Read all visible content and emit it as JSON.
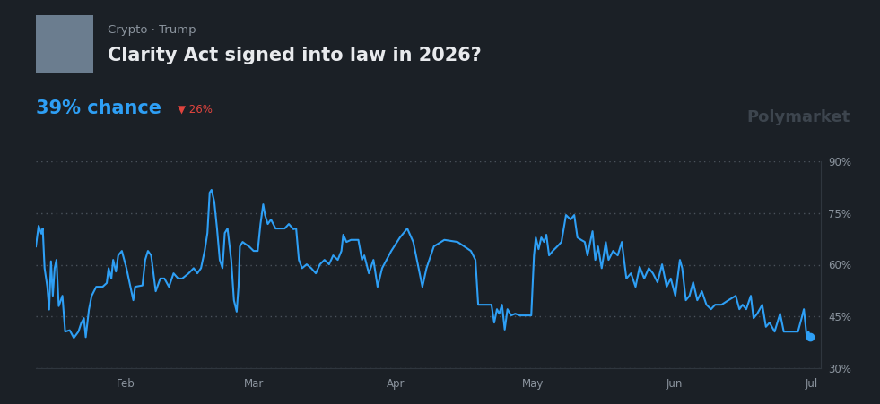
{
  "chart_data": {
    "type": "line",
    "title": "Clarity Act signed into law in 2026?",
    "subtitle": "Crypto · Trump",
    "annotations": [
      "39% chance",
      "▼ 26%",
      "Polymarket"
    ],
    "color": "#2e9ff5",
    "grid": true,
    "x": [
      12.4,
      13.0,
      13.6,
      13.9,
      14.3,
      14.9,
      15.3,
      15.7,
      16.1,
      16.5,
      16.9,
      17.4,
      18.2,
      18.8,
      19.8,
      20.7,
      21.7,
      22.3,
      22.9,
      23.3,
      24.0,
      24.6,
      25.6,
      27.0,
      27.9,
      28.3,
      28.9,
      29.3,
      29.9,
      30.4,
      31.2,
      32.2,
      33.7,
      34.1,
      35.7,
      36.3,
      36.9,
      37.6,
      38.6,
      39.6,
      40.5,
      41.5,
      42.5,
      43.5,
      44.4,
      45.8,
      46.9,
      47.7,
      48.5,
      49.3,
      49.9,
      50.4,
      50.8,
      51.4,
      52.0,
      52.6,
      53.2,
      53.7,
      54.3,
      55.1,
      55.7,
      56.3,
      56.7,
      57.0,
      57.6,
      58.2,
      59.0,
      60.0,
      60.9,
      61.5,
      62.1,
      62.5,
      63.1,
      63.8,
      64.8,
      66.8,
      67.7,
      68.7,
      69.3,
      69.9,
      70.6,
      71.6,
      72.6,
      73.6,
      74.5,
      75.5,
      76.5,
      77.4,
      78.4,
      79.2,
      79.6,
      80.3,
      81.3,
      82.9,
      83.7,
      84.2,
      85.2,
      86.2,
      87.1,
      88.1,
      90.1,
      92.0,
      93.6,
      94.9,
      95.9,
      96.9,
      97.8,
      99.4,
      101.7,
      104.6,
      107.5,
      108.5,
      109.1,
      111.4,
      112.0,
      112.6,
      113.2,
      113.7,
      114.3,
      114.9,
      115.5,
      116.3,
      117.2,
      118.2,
      119.2,
      120.7,
      121.3,
      121.7,
      122.3,
      122.9,
      123.5,
      124.0,
      124.6,
      125.4,
      126.4,
      127.3,
      128.3,
      129.3,
      130.1,
      130.8,
      131.6,
      132.4,
      133.0,
      133.6,
      134.1,
      134.7,
      135.3,
      136.1,
      137.0,
      137.6,
      138.6,
      139.6,
      140.5,
      141.5,
      142.5,
      143.5,
      144.4,
      145.4,
      146.4,
      147.3,
      148.3,
      149.3,
      150.3,
      151.2,
      152.2,
      153.2,
      153.7,
      154.5,
      155.3,
      156.1,
      157.0,
      158.0,
      159.0,
      160.0,
      160.9,
      162.3,
      163.8,
      165.4,
      166.2,
      166.9,
      167.7,
      168.7,
      169.3,
      170.1,
      171.2,
      172.0,
      172.8,
      173.9,
      175.1,
      175.9,
      177.4,
      179.0,
      179.8,
      180.3,
      180.9,
      181.3,
      181.7
    ],
    "values": [
      65.3,
      71.3,
      69,
      70.5,
      59,
      53.6,
      47,
      61,
      51,
      59,
      61.4,
      48,
      51,
      40.6,
      41,
      38.8,
      40.6,
      43,
      44.5,
      39,
      47,
      51,
      53.6,
      53.6,
      54.7,
      59,
      56,
      61.4,
      58,
      62.7,
      64,
      59,
      49.7,
      53.6,
      54,
      61.4,
      64,
      62.7,
      52.3,
      56,
      56,
      53.6,
      57.5,
      56,
      56,
      57.5,
      59,
      57.5,
      59,
      64,
      69.2,
      80.9,
      81.7,
      78.3,
      70.5,
      61.4,
      59,
      69.2,
      70.5,
      61.4,
      49.7,
      46.4,
      53.6,
      65.3,
      66.6,
      66,
      65.3,
      64,
      64,
      71.8,
      77.5,
      74.4,
      71.8,
      73.1,
      70.5,
      70.5,
      71.8,
      70.3,
      70.5,
      61.4,
      59,
      60.1,
      59,
      57.5,
      60.1,
      61.4,
      60.1,
      62.7,
      61.4,
      64,
      68.7,
      66.6,
      67.2,
      67.2,
      61.4,
      62.7,
      57.5,
      61.4,
      53.6,
      59,
      64,
      67.9,
      70.5,
      66.6,
      60.1,
      53.6,
      59,
      65.3,
      67.2,
      66.6,
      64,
      61.4,
      48.4,
      48.4,
      48.4,
      43.2,
      47.1,
      45.8,
      48.4,
      41.2,
      47.1,
      45.3,
      45.8,
      45.3,
      45.3,
      45.3,
      62.7,
      67.9,
      64.5,
      67.9,
      66.6,
      68.7,
      62.7,
      64,
      65.3,
      66.6,
      74.4,
      73.1,
      74.4,
      67.9,
      67.2,
      66.6,
      62.7,
      66.6,
      69.7,
      61.4,
      65.3,
      59,
      66.6,
      61.4,
      64,
      62.7,
      66.6,
      56,
      57.5,
      53.6,
      59.4,
      56,
      59,
      57.5,
      54.9,
      60.1,
      53.6,
      56,
      51,
      61.4,
      59,
      49.7,
      51,
      54.9,
      49.7,
      52.3,
      48.4,
      47.1,
      48.4,
      48.4,
      49.7,
      51,
      47.1,
      48.4,
      47.1,
      51,
      44.5,
      45.8,
      48.4,
      42,
      43.2,
      40.6,
      45.8,
      40.6,
      40.6,
      40.6,
      44.5,
      47.1,
      39.4,
      40.6,
      39
    ],
    "xlim": [
      12.4,
      184
    ],
    "xticks": [
      {
        "value": 32,
        "label": "Feb"
      },
      {
        "value": 60,
        "label": "Mar"
      },
      {
        "value": 91,
        "label": "Apr"
      },
      {
        "value": 121,
        "label": "May"
      },
      {
        "value": 152,
        "label": "Jun"
      },
      {
        "value": 182,
        "label": "Jul"
      }
    ],
    "ylim": [
      30,
      90
    ],
    "yticks": [
      {
        "value": 30,
        "label": "30%"
      },
      {
        "value": 45,
        "label": "45%"
      },
      {
        "value": 60,
        "label": "60%"
      },
      {
        "value": 75,
        "label": "75%"
      },
      {
        "value": 90,
        "label": "90%"
      }
    ]
  }
}
